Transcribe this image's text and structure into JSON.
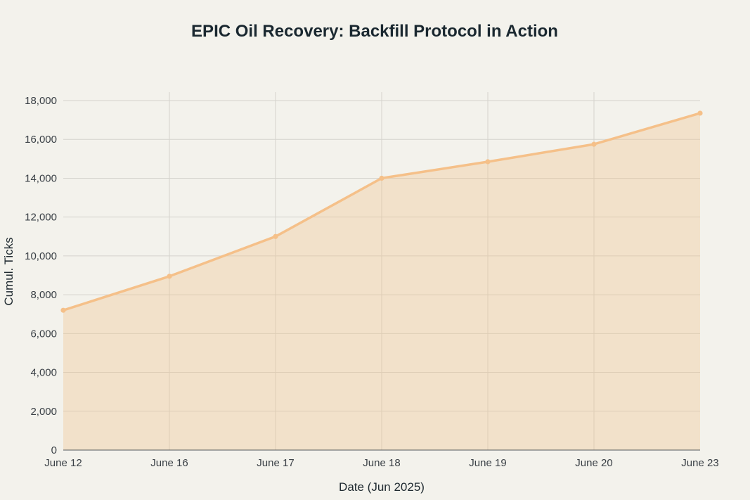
{
  "chart_data": {
    "type": "area",
    "title": "EPIC Oil Recovery: Backfill Protocol in Action",
    "xlabel": "Date (Jun 2025)",
    "ylabel": "Cumul. Ticks",
    "categories": [
      "June 12",
      "June 16",
      "June 17",
      "June 18",
      "June 19",
      "June 20",
      "June 23"
    ],
    "series": [
      {
        "name": "Cumul. Ticks",
        "values": [
          7200,
          8950,
          11000,
          14000,
          14850,
          15750,
          17350
        ],
        "color": "#f5c089"
      }
    ],
    "ylim": [
      0,
      18000
    ],
    "yticks": [
      0,
      2000,
      4000,
      6000,
      8000,
      10000,
      12000,
      14000,
      16000,
      18000
    ],
    "ytick_labels": [
      "0",
      "2,000",
      "4,000",
      "6,000",
      "8,000",
      "10,000",
      "12,000",
      "14,000",
      "16,000",
      "18,000"
    ],
    "grid": true,
    "legend": "none",
    "fill_color": "#f2c48d",
    "background": "#f3f2ec"
  }
}
